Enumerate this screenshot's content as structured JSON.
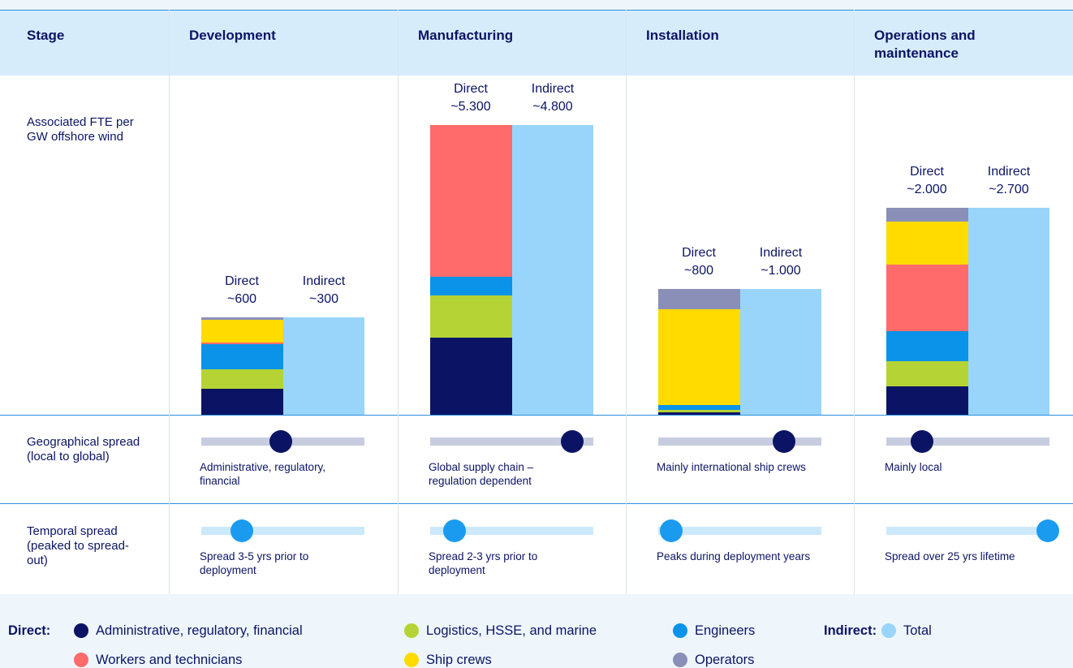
{
  "header": {
    "stage": "Stage"
  },
  "row_labels": {
    "fte": "Associated FTE per GW offshore wind",
    "geo": "Geographical spread (local to global)",
    "temporal": "Temporal spread (peaked to spread-out)"
  },
  "stages": [
    {
      "name": "Development",
      "direct": {
        "label": "Direct",
        "value": 600,
        "value_label": "~600",
        "segments": [
          161,
          118,
          155,
          11,
          139,
          16
        ]
      },
      "indirect": {
        "label": "Indirect",
        "value": 300,
        "value_label": "~300"
      },
      "geo": {
        "position": 49,
        "text": "Administrative, regulatory, financial"
      },
      "temporal": {
        "position": 25,
        "text": "Spread 3-5 yrs prior to deployment"
      }
    },
    {
      "name": "Manufacturing",
      "direct": {
        "label": "Direct",
        "value": 5300,
        "value_label": "~5.300",
        "segments": [
          1410,
          770,
          340,
          2780,
          0,
          0
        ]
      },
      "indirect": {
        "label": "Indirect",
        "value": 4800,
        "value_label": "~4.800"
      },
      "geo": {
        "position": 87,
        "text": "Global supply chain – regulation dependent"
      },
      "temporal": {
        "position": 15,
        "text": "Spread 2-3 yrs prior to deployment"
      }
    },
    {
      "name": "Installation",
      "direct": {
        "label": "Direct",
        "value": 800,
        "value_label": "~800",
        "segments": [
          15,
          15,
          30,
          0,
          610,
          130
        ]
      },
      "indirect": {
        "label": "Indirect",
        "value": 1000,
        "value_label": "~1.000"
      },
      "geo": {
        "position": 77,
        "text": "Mainly international ship crews"
      },
      "temporal": {
        "position": 8,
        "text": "Peaks during deployment years"
      }
    },
    {
      "name": "Operations and maintenance",
      "direct": {
        "label": "Direct",
        "value": 2000,
        "value_label": "~2.000",
        "segments": [
          275,
          240,
          295,
          640,
          420,
          130
        ]
      },
      "indirect": {
        "label": "Indirect",
        "value": 2700,
        "value_label": "~2.700"
      },
      "geo": {
        "position": 22,
        "text": "Mainly local"
      },
      "temporal": {
        "position": 99,
        "text": "Spread over 25 yrs lifetime"
      }
    }
  ],
  "legend": {
    "direct_title": "Direct:",
    "indirect_title": "Indirect:",
    "direct_items": [
      {
        "name": "Administrative, regulatory, financial",
        "color": "#0b1464"
      },
      {
        "name": "Logistics, HSSE, and marine",
        "color": "#b5d334"
      },
      {
        "name": "Engineers",
        "color": "#0a93e8"
      },
      {
        "name": "Workers and technicians",
        "color": "#ff6b6b"
      },
      {
        "name": "Ship crews",
        "color": "#ffdb00"
      },
      {
        "name": "Operators",
        "color": "#8a8fb8"
      }
    ],
    "indirect_items": [
      {
        "name": "Total",
        "color": "#99d5fb"
      }
    ]
  }
}
